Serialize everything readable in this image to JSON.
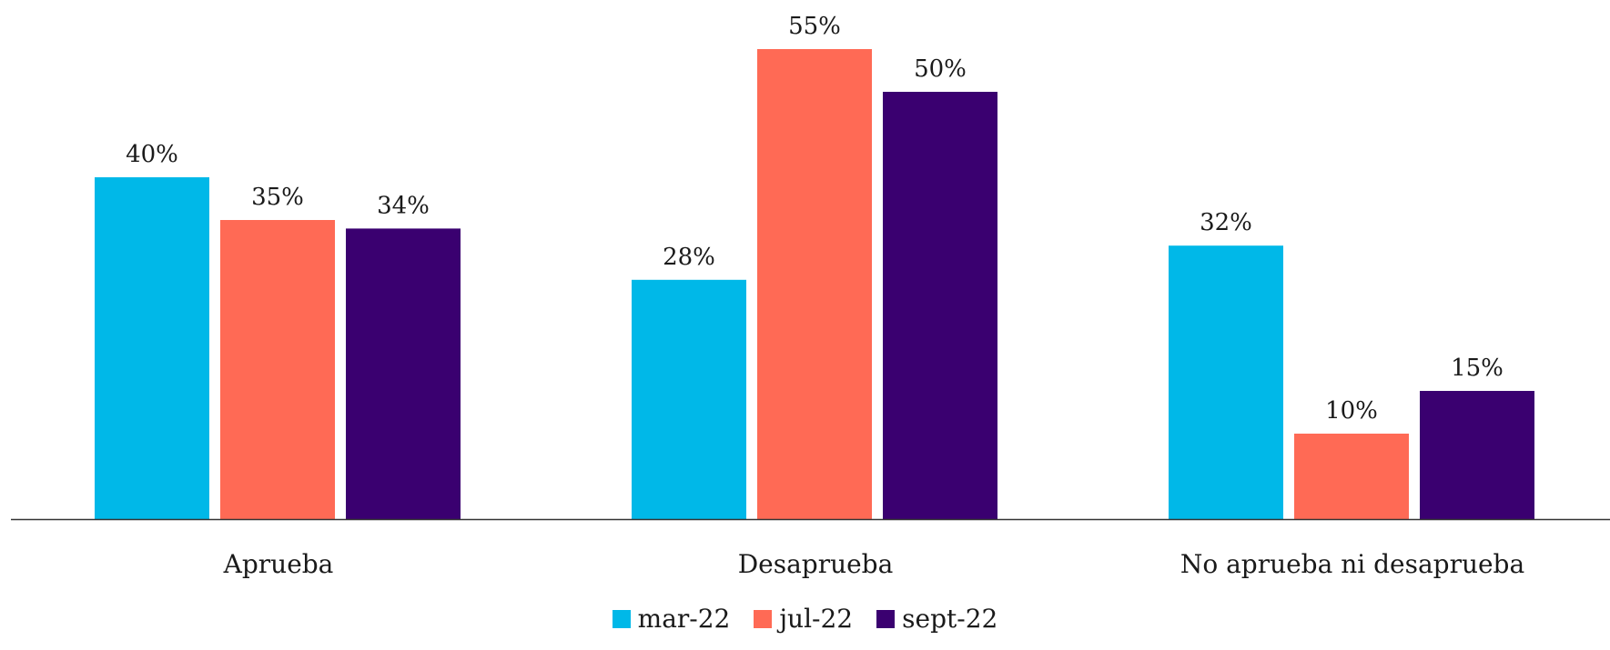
{
  "chart_data": {
    "type": "bar",
    "categories": [
      "Aprueba",
      "Desaprueba",
      "No aprueba ni desaprueba"
    ],
    "series": [
      {
        "name": "mar-22",
        "values": [
          40,
          28,
          32
        ],
        "labels": [
          "40%",
          "28%",
          "32%"
        ],
        "color": "#00B8E8"
      },
      {
        "name": "jul-22",
        "values": [
          35,
          55,
          10
        ],
        "labels": [
          "35%",
          "55%",
          "10%"
        ],
        "color": "#FF6A55"
      },
      {
        "name": "sept-22",
        "values": [
          34,
          50,
          15
        ],
        "labels": [
          "34%",
          "50%",
          "15%"
        ],
        "color": "#3A0070"
      }
    ],
    "ylim": [
      0,
      55
    ],
    "grid": false,
    "legend_position": "bottom-center",
    "axis_color": "#333333"
  }
}
